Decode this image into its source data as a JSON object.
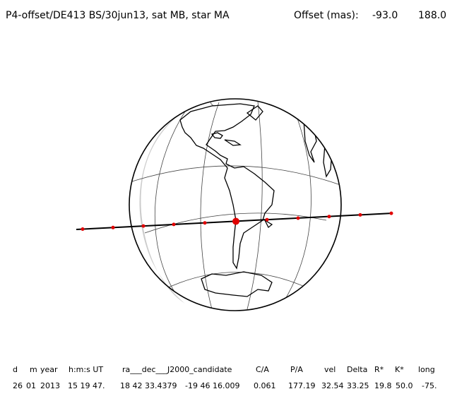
{
  "header": {
    "title": "P4-offset/DE413 BS/30jun13, sat MB, star MA",
    "offset_label": "Offset (mas):",
    "offset_values": [
      "-93.0",
      "188.0"
    ]
  },
  "table": {
    "columns": [
      "d",
      "m",
      "year",
      "h:m:s UT",
      "ra___dec___J2000_candidate",
      "C/A",
      "P/A",
      "vel",
      "Delta",
      "R*",
      "K*",
      "long"
    ],
    "rows": [
      [
        "26",
        "01",
        "2013",
        "15 19 47.",
        "18 42 33.4379",
        "-19 46 16.009",
        "0.061",
        "177.19",
        "32.54",
        "33.25",
        "19.8",
        "50.0",
        "-75."
      ]
    ]
  }
}
